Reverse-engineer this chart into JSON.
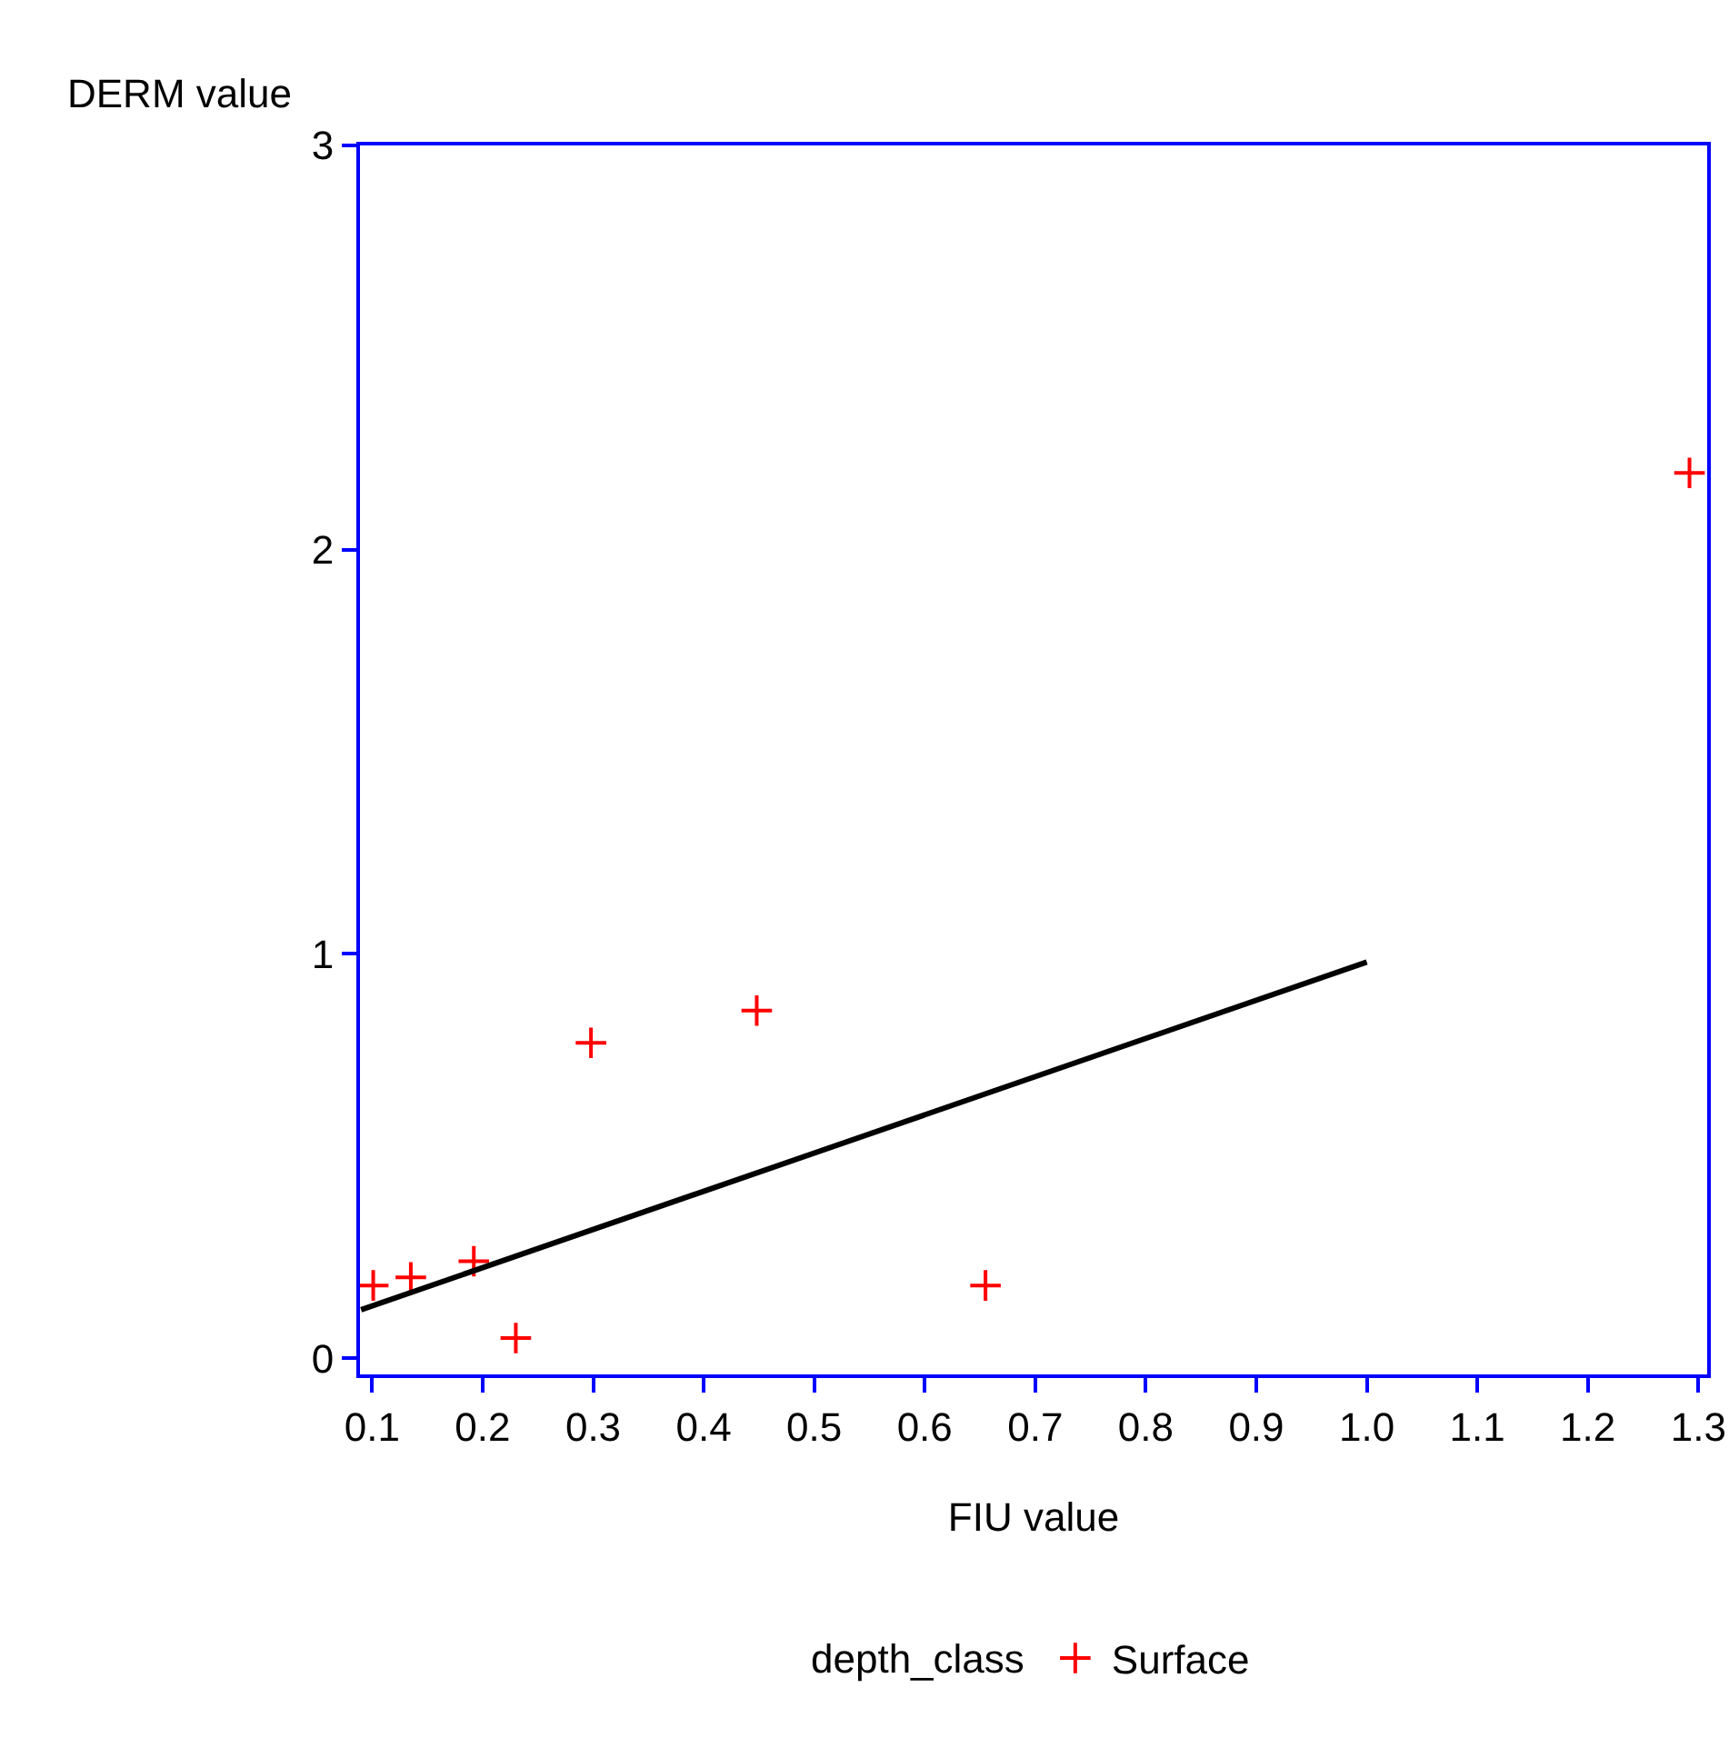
{
  "chart_data": {
    "type": "scatter",
    "xlabel": "FIU value",
    "ylabel": "DERM value",
    "legend_title": "depth_class",
    "legend": "bottom",
    "grid": false,
    "marker": "cross",
    "xlim": [
      0.089,
      1.308
    ],
    "xticks": [
      0.1,
      0.2,
      0.3,
      0.4,
      0.5,
      0.6,
      0.7,
      0.8,
      0.9,
      {
        "value": 1.0,
        "label": "1.0"
      },
      1.1,
      1.2,
      1.3
    ],
    "ylim": [
      -0.04,
      3.0
    ],
    "yticks": [
      0,
      1,
      2,
      3
    ],
    "series": [
      {
        "name": "Surface",
        "color": "#ff0000",
        "x": [
          0.101,
          0.135,
          0.192,
          0.23,
          0.298,
          0.448,
          0.655,
          1.292
        ],
        "values": [
          0.18,
          0.2,
          0.24,
          0.05,
          0.78,
          0.86,
          0.18,
          2.19
        ]
      },
      {
        "type": "line",
        "color": "#000000",
        "marker": "none",
        "line_style": "solid",
        "x": [
          0.09,
          1.0
        ],
        "values": [
          0.12,
          0.98
        ]
      }
    ]
  }
}
